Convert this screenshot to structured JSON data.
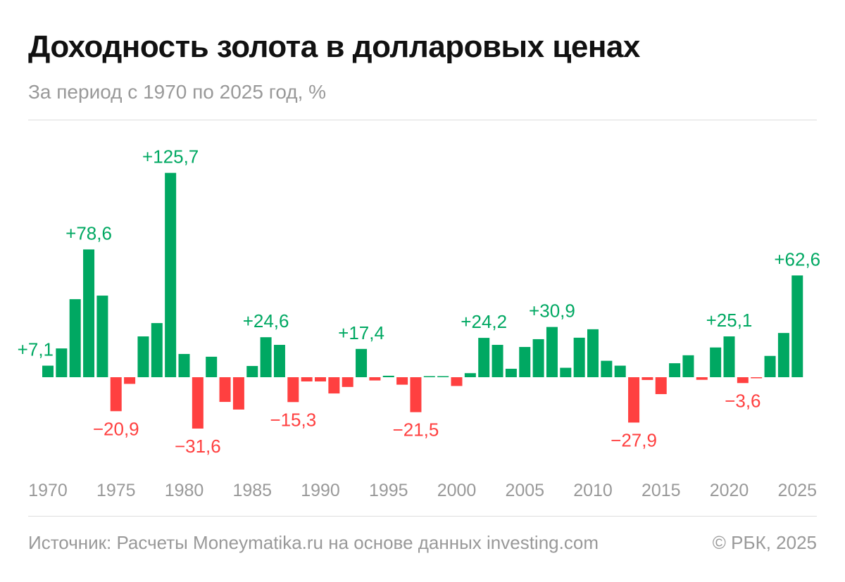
{
  "header": {
    "title": "Доходность золота в долларовых ценах",
    "subtitle": "За период с 1970 по 2025 год, %"
  },
  "footer": {
    "source": "Источник: Расчеты Moneymatika.ru на основе данных investing.com",
    "copyright": "© РБК, 2025"
  },
  "colors": {
    "positive": "#00a862",
    "negative": "#ff4040",
    "axis_text": "#999999"
  },
  "chart_data": {
    "type": "bar",
    "title": "Доходность золота в долларовых ценах",
    "subtitle": "За период с 1970 по 2025 год, %",
    "xlabel": "",
    "ylabel": "",
    "grid": false,
    "x_start": 1970,
    "tick_labels": [
      "1970",
      "1975",
      "1980",
      "1985",
      "1990",
      "1995",
      "2000",
      "2005",
      "2010",
      "2015",
      "2020",
      "2025"
    ],
    "values": [
      7.1,
      17.7,
      48.0,
      78.6,
      50.2,
      -20.9,
      -4.1,
      25.1,
      33.3,
      125.7,
      14.3,
      -31.6,
      12.6,
      -15.2,
      -19.9,
      6.9,
      24.6,
      19.9,
      -15.3,
      -2.6,
      -2.6,
      -10.0,
      -6.0,
      17.4,
      -2.0,
      0.9,
      -4.6,
      -21.5,
      0.6,
      0.6,
      -5.4,
      2.5,
      24.2,
      19.9,
      5.2,
      18.6,
      23.4,
      30.9,
      5.8,
      24.3,
      29.5,
      10.1,
      7.1,
      -27.9,
      -1.7,
      -10.4,
      8.6,
      13.5,
      -1.6,
      18.3,
      25.1,
      -3.6,
      -0.3,
      13.1,
      27.2,
      62.6
    ],
    "data_labels": [
      {
        "year": 1970,
        "text": "+7,1"
      },
      {
        "year": 1973,
        "text": "+78,6"
      },
      {
        "year": 1975,
        "text": "−20,9"
      },
      {
        "year": 1979,
        "text": "+125,7"
      },
      {
        "year": 1981,
        "text": "−31,6"
      },
      {
        "year": 1986,
        "text": "+24,6"
      },
      {
        "year": 1988,
        "text": "−15,3"
      },
      {
        "year": 1993,
        "text": "+17,4"
      },
      {
        "year": 1997,
        "text": "−21,5"
      },
      {
        "year": 2002,
        "text": "+24,2"
      },
      {
        "year": 2007,
        "text": "+30,9"
      },
      {
        "year": 2013,
        "text": "−27,9"
      },
      {
        "year": 2020,
        "text": "+25,1"
      },
      {
        "year": 2021,
        "text": "−3,6"
      },
      {
        "year": 2025,
        "text": "+62,6"
      }
    ]
  }
}
